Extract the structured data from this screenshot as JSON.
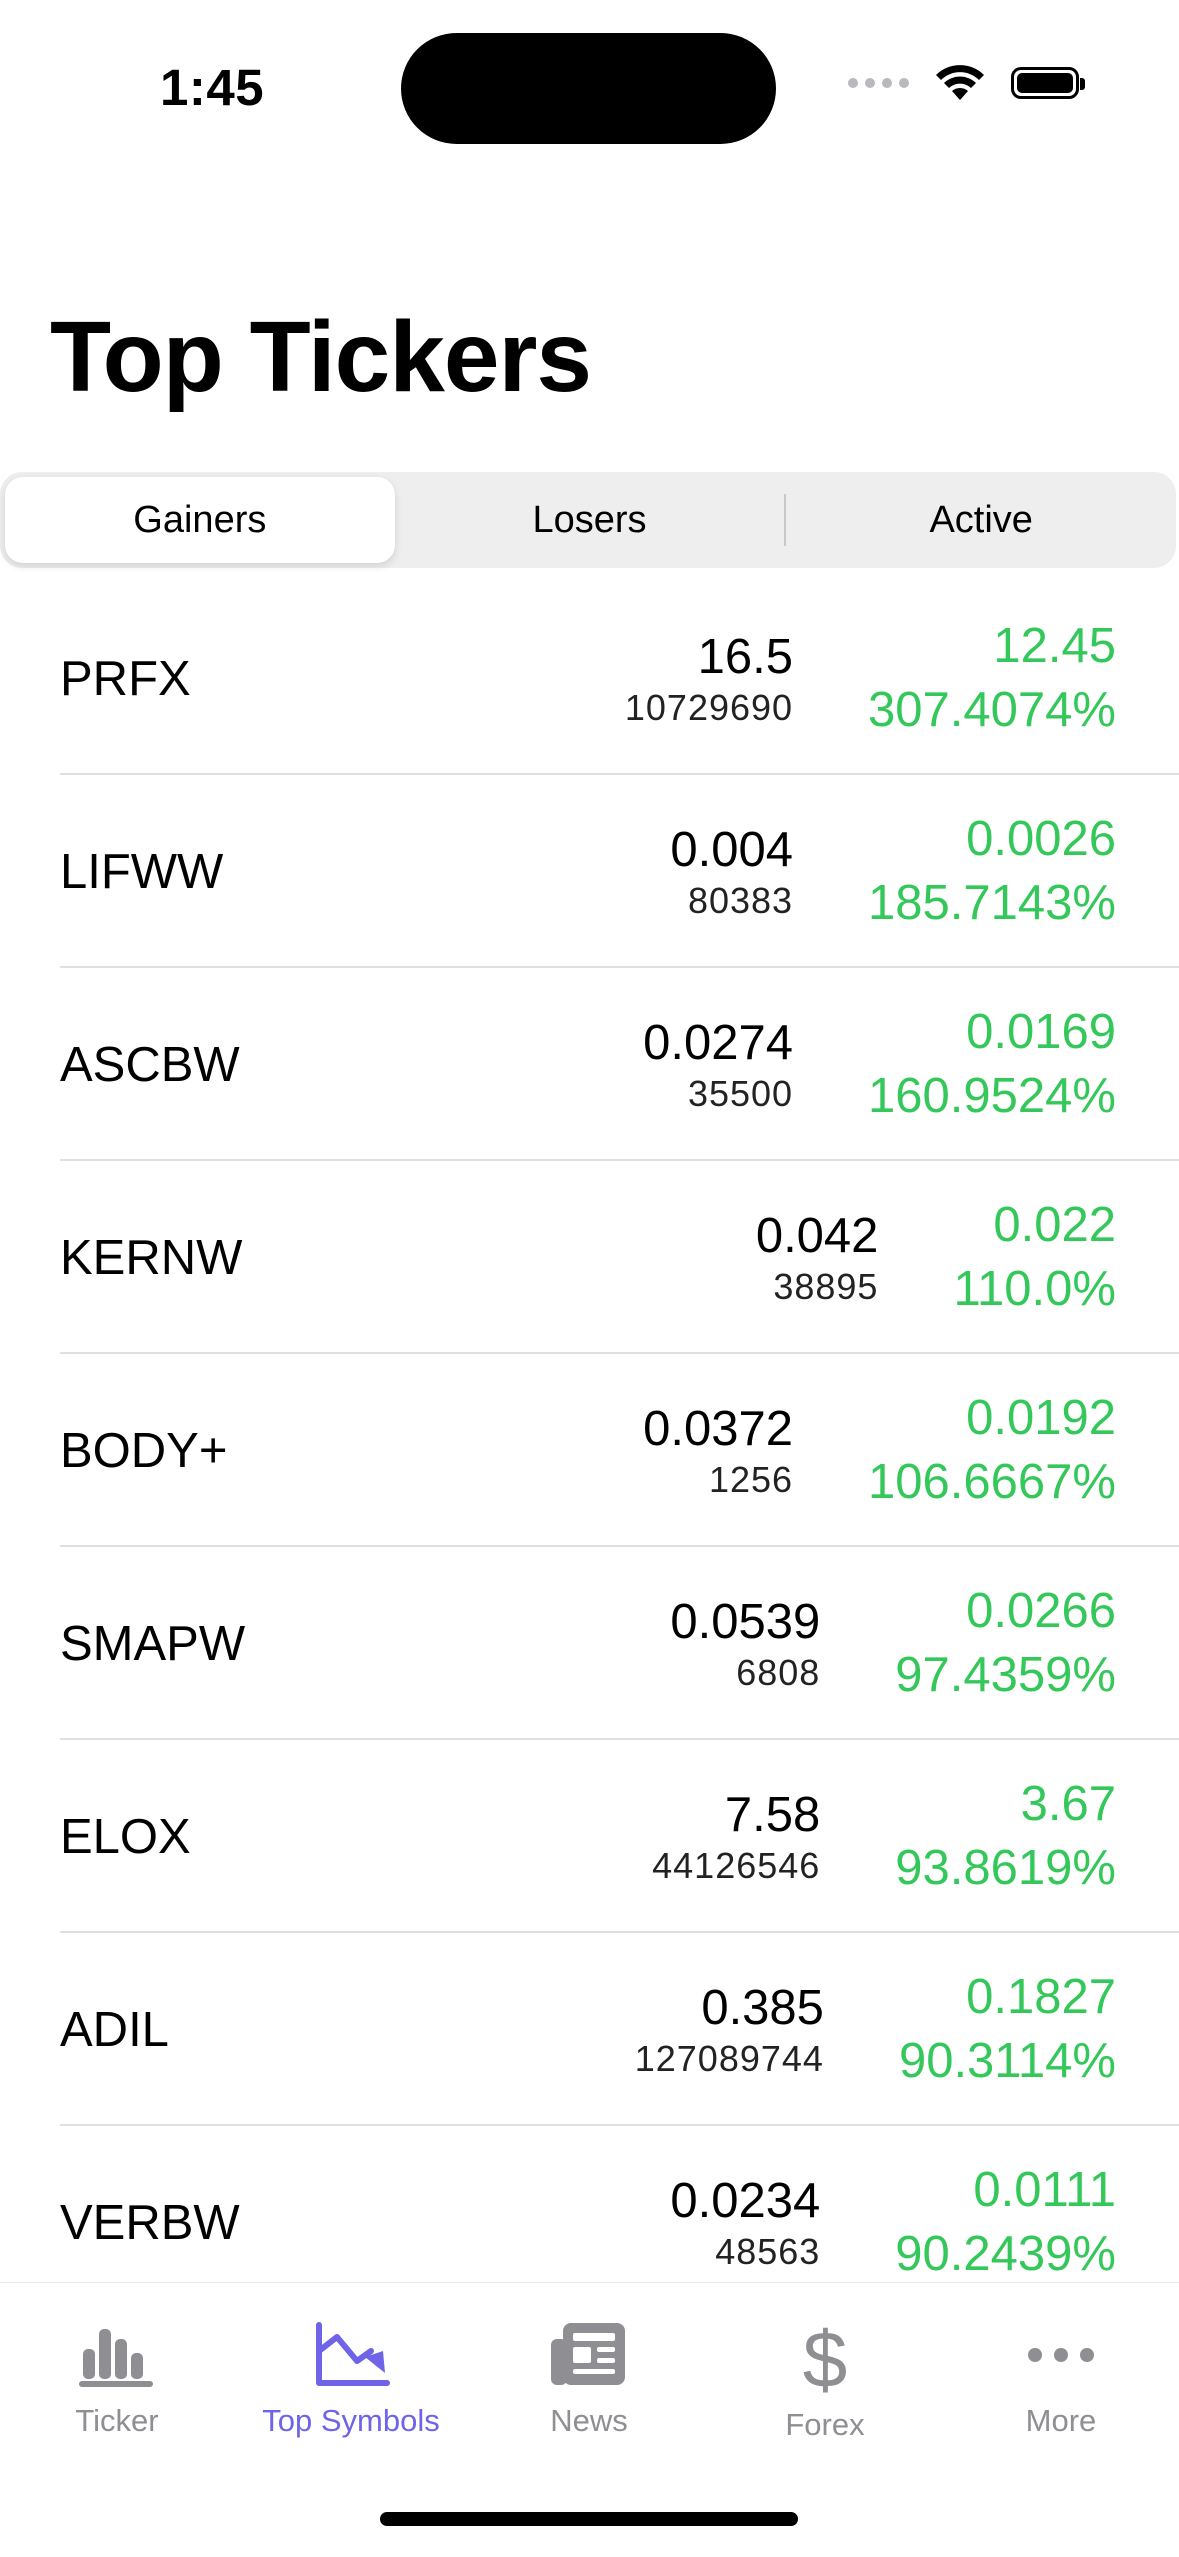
{
  "status_bar": {
    "time": "1:45"
  },
  "page": {
    "title": "Top Tickers"
  },
  "segments": [
    {
      "label": "Gainers",
      "selected": true
    },
    {
      "label": "Losers",
      "selected": false
    },
    {
      "label": "Active",
      "selected": false
    }
  ],
  "tickers": [
    {
      "symbol": "PRFX",
      "price": "16.5",
      "volume": "10729690",
      "change": "12.45",
      "percent": "307.4074%"
    },
    {
      "symbol": "LIFWW",
      "price": "0.004",
      "volume": "80383",
      "change": "0.0026",
      "percent": "185.7143%"
    },
    {
      "symbol": "ASCBW",
      "price": "0.0274",
      "volume": "35500",
      "change": "0.0169",
      "percent": "160.9524%"
    },
    {
      "symbol": "KERNW",
      "price": "0.042",
      "volume": "38895",
      "change": "0.022",
      "percent": "110.0%"
    },
    {
      "symbol": "BODY+",
      "price": "0.0372",
      "volume": "1256",
      "change": "0.0192",
      "percent": "106.6667%"
    },
    {
      "symbol": "SMAPW",
      "price": "0.0539",
      "volume": "6808",
      "change": "0.0266",
      "percent": "97.4359%"
    },
    {
      "symbol": "ELOX",
      "price": "7.58",
      "volume": "44126546",
      "change": "3.67",
      "percent": "93.8619%"
    },
    {
      "symbol": "ADIL",
      "price": "0.385",
      "volume": "127089744",
      "change": "0.1827",
      "percent": "90.3114%"
    },
    {
      "symbol": "VERBW",
      "price": "0.0234",
      "volume": "48563",
      "change": "0.0111",
      "percent": "90.2439%"
    }
  ],
  "tabbar": {
    "items": [
      {
        "label": "Ticker",
        "icon": "bar-chart-icon",
        "active": false
      },
      {
        "label": "Top Symbols",
        "icon": "chart-trend-down-icon",
        "active": true
      },
      {
        "label": "News",
        "icon": "newspaper-icon",
        "active": false
      },
      {
        "label": "Forex",
        "icon": "dollar-icon",
        "active": false
      },
      {
        "label": "More",
        "icon": "ellipsis-icon",
        "active": false
      }
    ]
  },
  "colors": {
    "positive": "#34c759",
    "accent": "#6f64e8",
    "inactive": "#8e8e93"
  }
}
